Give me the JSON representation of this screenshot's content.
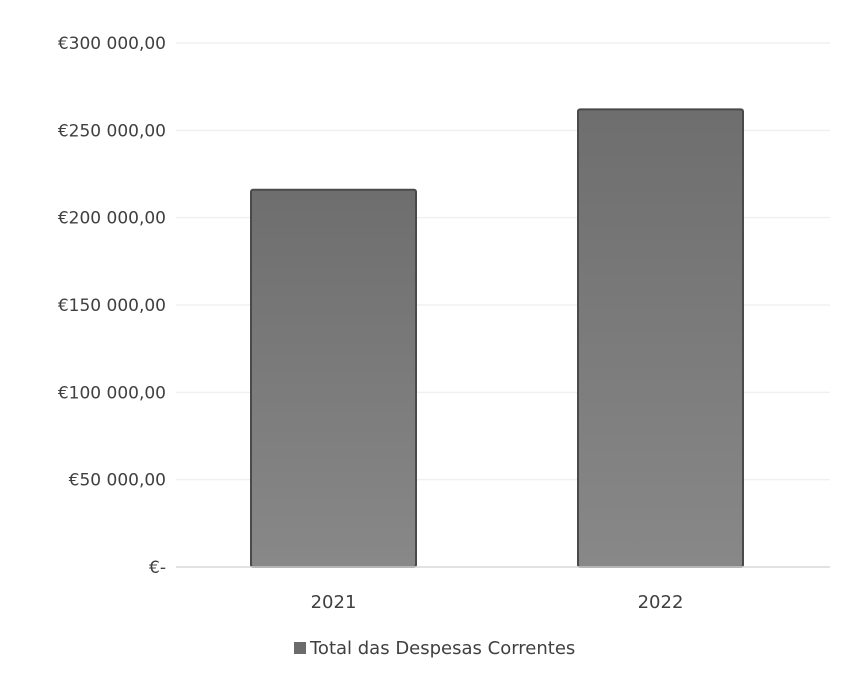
{
  "chart_data": {
    "type": "bar",
    "title": "",
    "xlabel": "",
    "ylabel": "",
    "categories": [
      "2021",
      "2022"
    ],
    "series": [
      {
        "name": "Total das Despesas Correntes",
        "values": [
          216000,
          262000
        ]
      }
    ],
    "ylim": [
      0,
      300000
    ],
    "y_ticks": [
      0,
      50000,
      100000,
      150000,
      200000,
      250000,
      300000
    ],
    "y_tick_labels": [
      "€-",
      "€50 000,00",
      "€100 000,00",
      "€150 000,00",
      "€200 000,00",
      "€250 000,00",
      "€300 000,00"
    ],
    "grid": true,
    "legend_position": "bottom",
    "colors": {
      "bar_fill_top": "#6e6e6e",
      "bar_fill_bottom": "#888888",
      "bar_stroke": "#4a4a4a",
      "gridline": "#f0f0f0",
      "baseline": "#d9d9d9",
      "legend_marker": "#6b6b6b",
      "text": "#404040"
    }
  }
}
